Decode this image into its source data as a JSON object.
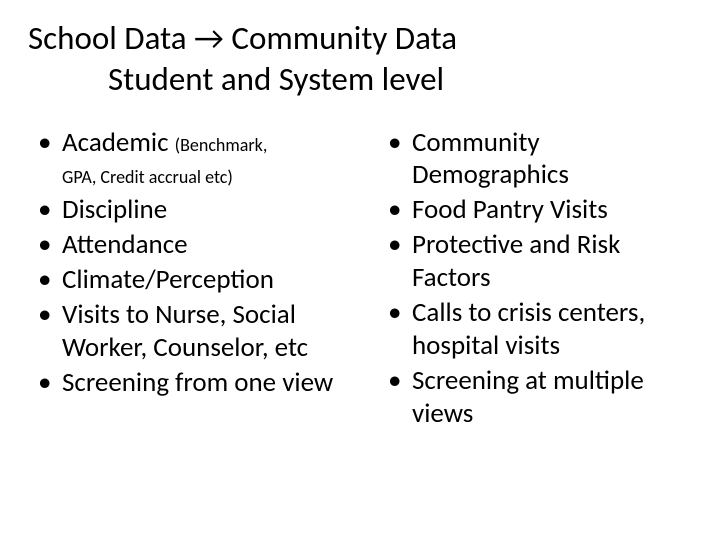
{
  "title": {
    "line1": "School Data → Community Data",
    "line2": "Student and System level"
  },
  "left": {
    "items": [
      {
        "main": "Academic ",
        "sub1": "(Benchmark,",
        "sub2": "GPA, Credit accrual etc)"
      },
      {
        "main": "Discipline"
      },
      {
        "main": "Attendance"
      },
      {
        "main": "Climate/Perception"
      },
      {
        "main": "Visits to Nurse, Social Worker, Counselor, etc"
      },
      {
        "main": "Screening from one view"
      }
    ]
  },
  "right": {
    "items": [
      {
        "main": "Community Demographics"
      },
      {
        "main": "Food Pantry Visits"
      },
      {
        "main": "Protective and Risk Factors"
      },
      {
        "main": "Calls to crisis centers, hospital visits"
      },
      {
        "main": "Screening at multiple views"
      }
    ]
  },
  "colors": {
    "background": "#ffffff",
    "text": "#000000"
  },
  "typography": {
    "title_fontsize": 33,
    "body_fontsize": 27,
    "sub_fontsize": 18,
    "font_family": "Calibri"
  }
}
